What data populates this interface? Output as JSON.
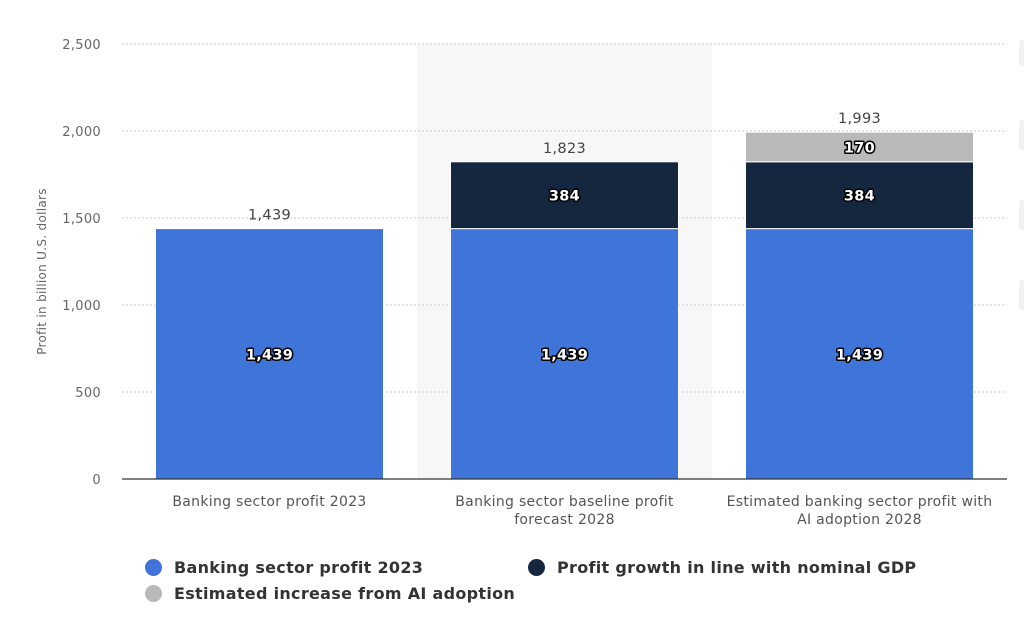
{
  "chart_data": {
    "type": "bar",
    "stacked": true,
    "ylabel": "Profit in billion U.S. dollars",
    "xlabel": "",
    "ylim": [
      0,
      2500
    ],
    "yticks": [
      0,
      500,
      1000,
      1500,
      2000,
      2500
    ],
    "ytick_labels": [
      "0",
      "500",
      "1,000",
      "1,500",
      "2,000",
      "2,500"
    ],
    "grid": true,
    "highlighted_category_index": 1,
    "categories": [
      [
        "Banking sector profit 2023"
      ],
      [
        "Banking sector baseline profit",
        "forecast 2028"
      ],
      [
        "Estimated banking sector profit with",
        "AI adoption 2028"
      ]
    ],
    "series": [
      {
        "name": "Banking sector profit 2023",
        "color": "#3f74d8",
        "values": [
          1439,
          1439,
          1439
        ],
        "labels": [
          "1,439",
          "1,439",
          "1,439"
        ]
      },
      {
        "name": "Profit growth in line with nominal GDP",
        "color": "#15263f",
        "values": [
          0,
          384,
          384
        ],
        "labels": [
          "",
          "384",
          "384"
        ]
      },
      {
        "name": "Estimated increase from AI adoption",
        "color": "#b9b9b9",
        "values": [
          0,
          0,
          170
        ],
        "labels": [
          "",
          "",
          "170"
        ]
      }
    ],
    "totals": [
      1439,
      1823,
      1993
    ],
    "total_labels": [
      "1,439",
      "1,823",
      "1,993"
    ]
  },
  "legend": {
    "items": [
      {
        "label": "Banking sector profit 2023",
        "color": "#3f74d8"
      },
      {
        "label": "Profit growth in line with nominal GDP",
        "color": "#15263f"
      },
      {
        "label": "Estimated increase from AI adoption",
        "color": "#b9b9b9"
      }
    ]
  }
}
